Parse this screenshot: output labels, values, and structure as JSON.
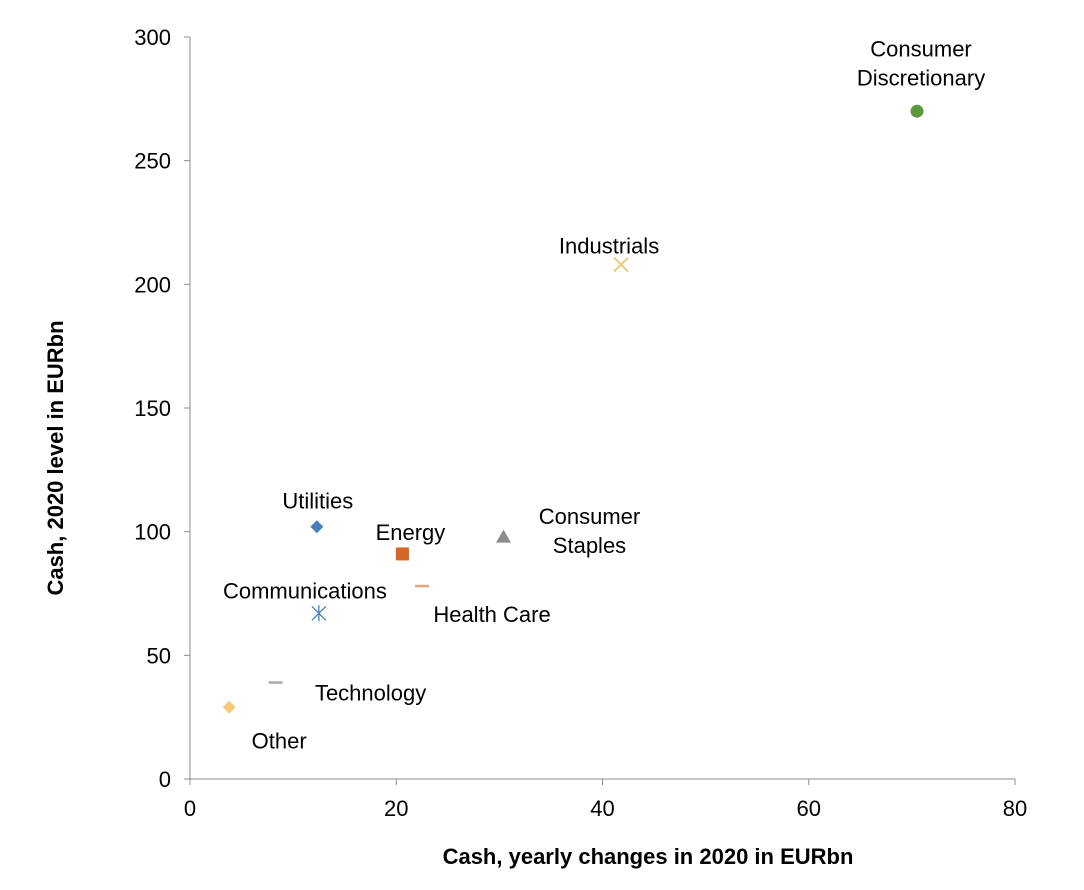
{
  "chart_data": {
    "type": "scatter",
    "title": "",
    "xlabel": "Cash, yearly changes in 2020 in EURbn",
    "ylabel": "Cash, 2020 level in EURbn",
    "xlim": [
      0,
      80
    ],
    "ylim": [
      0,
      300
    ],
    "xticks": [
      0,
      20,
      40,
      60,
      80
    ],
    "yticks": [
      0,
      50,
      100,
      150,
      200,
      250,
      300
    ],
    "grid": false,
    "legend": "none",
    "points": [
      {
        "name": "Consumer Discretionary",
        "label_lines": [
          "Consumer",
          "Discretionary"
        ],
        "x": 70.5,
        "y": 270,
        "marker": "circle",
        "color": "#5B9A3C"
      },
      {
        "name": "Industrials",
        "label_lines": [
          "Industrials"
        ],
        "x": 41.8,
        "y": 208,
        "marker": "x",
        "color": "#E8C15F"
      },
      {
        "name": "Utilities",
        "label_lines": [
          "Utilities"
        ],
        "x": 12.3,
        "y": 102,
        "marker": "diamond",
        "color": "#4A7EBB"
      },
      {
        "name": "Energy",
        "label_lines": [
          "Energy"
        ],
        "x": 20.6,
        "y": 91,
        "marker": "square",
        "color": "#D2672A"
      },
      {
        "name": "Consumer Staples",
        "label_lines": [
          "Consumer",
          "Staples"
        ],
        "x": 30.4,
        "y": 98,
        "marker": "triangle",
        "color": "#8C8C8C"
      },
      {
        "name": "Health Care",
        "label_lines": [
          "Health Care"
        ],
        "x": 22.5,
        "y": 78,
        "marker": "dash",
        "color": "#E5A57C"
      },
      {
        "name": "Communications",
        "label_lines": [
          "Communications"
        ],
        "x": 12.5,
        "y": 67,
        "marker": "asterisk",
        "color": "#4A7EBB"
      },
      {
        "name": "Technology",
        "label_lines": [
          "Technology"
        ],
        "x": 8.3,
        "y": 39,
        "marker": "dash",
        "color": "#AAAAAA"
      },
      {
        "name": "Other",
        "label_lines": [
          "Other"
        ],
        "x": 3.8,
        "y": 29,
        "marker": "diamond",
        "color": "#F5C97A"
      }
    ]
  }
}
